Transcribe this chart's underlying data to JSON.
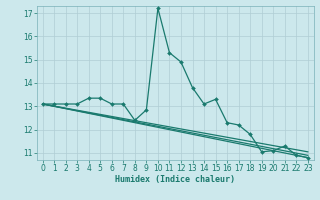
{
  "xlabel": "Humidex (Indice chaleur)",
  "ylabel": "",
  "bg_color": "#cce8ec",
  "grid_color": "#b0ced4",
  "line_color": "#1a7a6e",
  "xlim": [
    -0.5,
    23.5
  ],
  "ylim": [
    10.7,
    17.3
  ],
  "yticks": [
    11,
    12,
    13,
    14,
    15,
    16,
    17
  ],
  "xticks": [
    0,
    1,
    2,
    3,
    4,
    5,
    6,
    7,
    8,
    9,
    10,
    11,
    12,
    13,
    14,
    15,
    16,
    17,
    18,
    19,
    20,
    21,
    22,
    23
  ],
  "series1_x": [
    0,
    1,
    2,
    3,
    4,
    5,
    6,
    7,
    8,
    9,
    10,
    11,
    12,
    13,
    14,
    15,
    16,
    17,
    18,
    19,
    20,
    21,
    22,
    23
  ],
  "series1_y": [
    13.1,
    13.1,
    13.1,
    13.1,
    13.35,
    13.35,
    13.1,
    13.1,
    12.4,
    12.85,
    17.2,
    15.3,
    14.9,
    13.8,
    13.1,
    13.3,
    12.3,
    12.2,
    11.8,
    11.05,
    11.1,
    11.3,
    10.9,
    10.8
  ],
  "series2_x": [
    0,
    23
  ],
  "series2_y": [
    13.1,
    10.8
  ],
  "series3_x": [
    0,
    23
  ],
  "series3_y": [
    13.1,
    11.05
  ],
  "series4_x": [
    0,
    23
  ],
  "series4_y": [
    13.1,
    10.9
  ]
}
